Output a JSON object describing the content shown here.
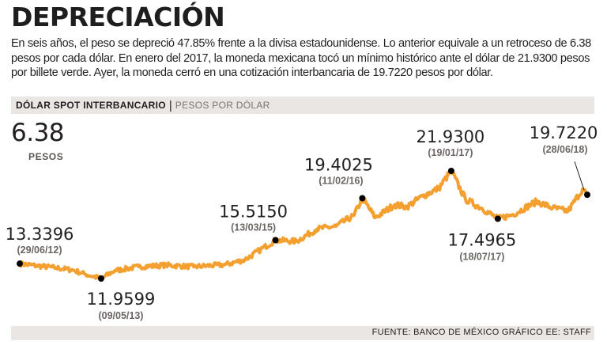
{
  "title": "DEPRECIACIÓN",
  "description": "En seis años, el peso se depreció 47.85% frente a la divisa estadounidense. Lo anterior equivale a un retroceso de 6.38 pesos por cada dólar. En enero del 2017, la moneda mexicana tocó un mínimo histórico ante el dólar de 21.9300 pesos por billete verde. Ayer, la moneda cerró en una cotización interbancaria de 19.7220 pesos por dólar.",
  "header": {
    "label": "DÓLAR SPOT INTERBANCARIO",
    "separator": "|",
    "unit": "PESOS POR DÓLAR"
  },
  "highlight": {
    "value": "6.38",
    "unit": "PESOS"
  },
  "source": "FUENTE: BANCO DE MÉXICO GRÁFICO EE: STAFF",
  "colors": {
    "line": "#f4a031",
    "marker": "#000000",
    "panel": "#e9e6e3"
  },
  "chart_data": {
    "type": "line",
    "title": "DÓLAR SPOT INTERBANCARIO",
    "ylabel": "PESOS POR DÓLAR",
    "xlabel": "",
    "ylim": [
      11,
      23
    ],
    "series": [
      {
        "name": "Dólar spot interbancario",
        "points": [
          {
            "date": "2012-06-29",
            "value": 13.3396
          },
          {
            "date": "2012-09-01",
            "value": 13.15
          },
          {
            "date": "2012-11-15",
            "value": 12.95
          },
          {
            "date": "2013-01-20",
            "value": 12.75
          },
          {
            "date": "2013-03-10",
            "value": 12.35
          },
          {
            "date": "2013-05-09",
            "value": 11.9599
          },
          {
            "date": "2013-07-01",
            "value": 12.7
          },
          {
            "date": "2013-10-01",
            "value": 13.05
          },
          {
            "date": "2014-01-15",
            "value": 13.2
          },
          {
            "date": "2014-05-01",
            "value": 13.05
          },
          {
            "date": "2014-09-01",
            "value": 13.25
          },
          {
            "date": "2014-11-15",
            "value": 13.7
          },
          {
            "date": "2015-01-15",
            "value": 14.65
          },
          {
            "date": "2015-03-13",
            "value": 15.515
          },
          {
            "date": "2015-06-01",
            "value": 15.4
          },
          {
            "date": "2015-08-20",
            "value": 16.55
          },
          {
            "date": "2015-11-01",
            "value": 16.8
          },
          {
            "date": "2016-01-10",
            "value": 17.8
          },
          {
            "date": "2016-02-11",
            "value": 19.4025
          },
          {
            "date": "2016-04-01",
            "value": 17.6
          },
          {
            "date": "2016-06-15",
            "value": 18.8
          },
          {
            "date": "2016-08-01",
            "value": 18.6
          },
          {
            "date": "2016-10-01",
            "value": 19.6
          },
          {
            "date": "2016-12-01",
            "value": 20.3
          },
          {
            "date": "2017-01-19",
            "value": 21.93
          },
          {
            "date": "2017-03-15",
            "value": 19.3
          },
          {
            "date": "2017-05-15",
            "value": 18.5
          },
          {
            "date": "2017-07-18",
            "value": 17.4965
          },
          {
            "date": "2017-09-15",
            "value": 17.9
          },
          {
            "date": "2017-12-15",
            "value": 19.1
          },
          {
            "date": "2018-02-15",
            "value": 18.5
          },
          {
            "date": "2018-04-15",
            "value": 18.2
          },
          {
            "date": "2018-06-10",
            "value": 20.25
          },
          {
            "date": "2018-06-28",
            "value": 19.722
          }
        ]
      }
    ],
    "annotations": [
      {
        "value": "13.3396",
        "date": "(29/06/12)",
        "anchor": "2012-06-29",
        "y": 13.3396,
        "placement": "above-left"
      },
      {
        "value": "11.9599",
        "date": "(09/05/13)",
        "anchor": "2013-05-09",
        "y": 11.9599,
        "placement": "below"
      },
      {
        "value": "15.5150",
        "date": "(13/03/15)",
        "anchor": "2015-03-13",
        "y": 15.515,
        "placement": "above-left"
      },
      {
        "value": "19.4025",
        "date": "(11/02/16)",
        "anchor": "2016-02-11",
        "y": 19.4025,
        "placement": "above-left"
      },
      {
        "value": "21.9300",
        "date": "(19/01/17)",
        "anchor": "2017-01-19",
        "y": 21.93,
        "placement": "above"
      },
      {
        "value": "17.4965",
        "date": "(18/07/17)",
        "anchor": "2017-07-18",
        "y": 17.4965,
        "placement": "below"
      },
      {
        "value": "19.7220",
        "date": "(28/06/18)",
        "anchor": "2018-06-28",
        "y": 19.722,
        "placement": "above-left"
      }
    ]
  }
}
